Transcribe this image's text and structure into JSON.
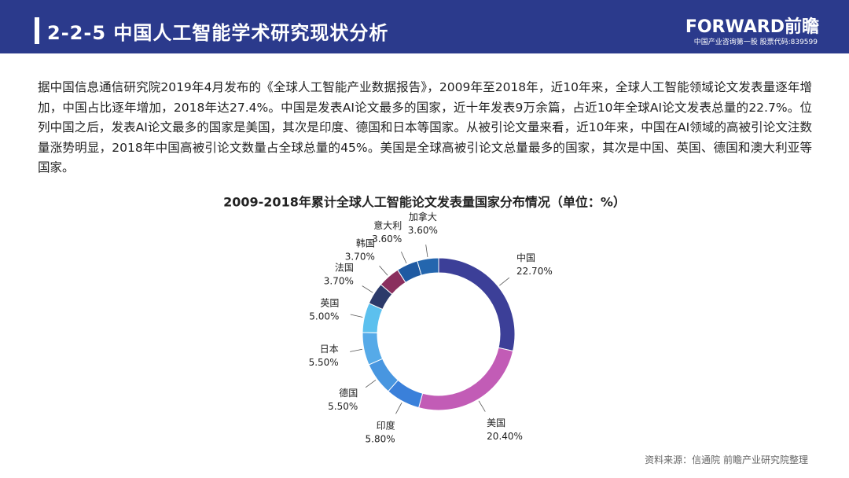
{
  "header": {
    "title": "2-2-5 中国人工智能学术研究现状分析",
    "logo": "FORWARD前瞻",
    "logo_subtitle": "中国产业咨询第一股 股票代码:839599"
  },
  "body": {
    "paragraph": "据中国信息通信研究院2019年4月发布的《全球人工智能产业数据报告》，2009年至2018年，近10年来，全球人工智能领域论文发表量逐年增加，中国占比逐年增加，2018年达27.4%。中国是发表AI论文最多的国家，近十年发表9万余篇，占近10年全球AI论文发表总量的22.7%。位列中国之后，发表AI论文最多的国家是美国，其次是印度、德国和日本等国家。从被引论文量来看，近10年来，中国在AI领域的高被引论文注数量涨势明显，2018年中国高被引论文数量占全球总量的45%。美国是全球高被引论文总量最多的国家，其次是中国、英国、德国和澳大利亚等国家。"
  },
  "chart_data": {
    "type": "donut",
    "title": "2009-2018年累计全球人工智能论文发表量国家分布情况（单位：%）",
    "categories": [
      "中国",
      "美国",
      "印度",
      "德国",
      "日本",
      "英国",
      "法国",
      "韩国",
      "意大利",
      "加拿大"
    ],
    "values": [
      22.7,
      20.4,
      5.8,
      5.5,
      5.5,
      5.0,
      3.7,
      3.7,
      3.6,
      3.6
    ],
    "value_labels": [
      "22.70%",
      "20.40%",
      "5.80%",
      "5.50%",
      "5.50%",
      "5.00%",
      "3.70%",
      "3.70%",
      "3.60%",
      "3.60%"
    ],
    "colors": [
      "#3c3f98",
      "#c25cb6",
      "#3a80da",
      "#4896e0",
      "#56aae8",
      "#5cc0ee",
      "#2c3a6a",
      "#8a2f5e",
      "#1f5aa2",
      "#2466ae"
    ]
  },
  "footer": {
    "source": "资料来源：信通院 前瞻产业研究院整理"
  }
}
